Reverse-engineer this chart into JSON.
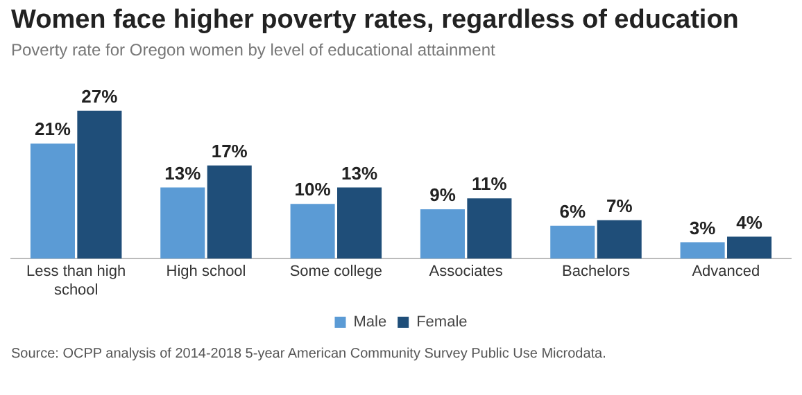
{
  "chart_data": {
    "type": "bar",
    "title": "Women face higher poverty rates, regardless of education",
    "subtitle": "Poverty rate for Oregon women by level of educational attainment",
    "categories": [
      "Less than high school",
      "High school",
      "Some college",
      "Associates",
      "Bachelors",
      "Advanced"
    ],
    "series": [
      {
        "name": "Male",
        "color": "#5b9bd5",
        "values": [
          21,
          13,
          10,
          9,
          6,
          3
        ],
        "value_labels": [
          "21%",
          "13%",
          "10%",
          "9%",
          "6%",
          "3%"
        ]
      },
      {
        "name": "Female",
        "color": "#1f4e79",
        "values": [
          27,
          17,
          13,
          11,
          7,
          4
        ],
        "value_labels": [
          "27%",
          "17%",
          "13%",
          "11%",
          "7%",
          "4%"
        ]
      }
    ],
    "legend": "bottom",
    "grid": false,
    "annotations": [
      "Source: OCPP analysis of 2014-2018 5-year American Community Survey Public Use Microdata."
    ]
  }
}
